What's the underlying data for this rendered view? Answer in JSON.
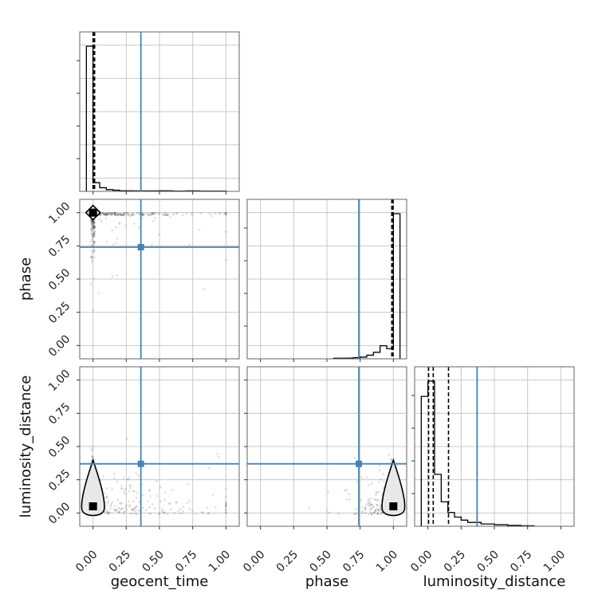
{
  "chart_data": {
    "type": "corner",
    "parameters": [
      "geocent_time",
      "phase",
      "luminosity_distance"
    ],
    "axis_range": [
      -0.1,
      1.1
    ],
    "tick_labels": [
      "0.00",
      "0.25",
      "0.50",
      "0.75",
      "1.00"
    ],
    "tick_values": [
      0.0,
      0.25,
      0.5,
      0.75,
      1.0
    ],
    "grid": true,
    "truth": {
      "geocent_time": 0.36,
      "phase": 0.74,
      "luminosity_distance": 0.37
    },
    "truth_color": "#4682b4",
    "histograms": [
      {
        "parameter": "geocent_time",
        "bin_edges": [
          -0.05,
          0.0,
          0.05,
          0.1,
          0.15,
          0.2,
          0.3,
          0.4,
          0.5,
          0.6,
          0.7,
          0.8,
          0.9,
          1.0
        ],
        "density": [
          1.0,
          0.06,
          0.025,
          0.012,
          0.008,
          0.004,
          0.003,
          0.003,
          0.004,
          0.002,
          0.003,
          0.002,
          0.002
        ],
        "quantile_lines": [
          0.0,
          0.005,
          0.012
        ]
      },
      {
        "parameter": "phase",
        "bin_edges": [
          0.55,
          0.6,
          0.65,
          0.7,
          0.75,
          0.8,
          0.85,
          0.9,
          0.95,
          1.0,
          1.05
        ],
        "density": [
          0.004,
          0.004,
          0.005,
          0.008,
          0.012,
          0.025,
          0.045,
          0.09,
          0.07,
          1.0
        ],
        "quantile_lines": [
          0.988,
          0.995,
          0.998
        ]
      },
      {
        "parameter": "luminosity_distance",
        "bin_edges": [
          -0.05,
          0.0,
          0.05,
          0.1,
          0.15,
          0.2,
          0.25,
          0.3,
          0.4,
          0.5,
          0.6,
          0.7,
          0.8
        ],
        "density": [
          0.85,
          0.95,
          0.34,
          0.16,
          0.09,
          0.06,
          0.04,
          0.025,
          0.015,
          0.01,
          0.006,
          0.003
        ],
        "quantile_lines": [
          0.005,
          0.04,
          0.155
        ]
      }
    ],
    "scatter_2d": [
      {
        "x_parameter": "geocent_time",
        "y_parameter": "phase",
        "mode": [
          0.0,
          1.0
        ]
      },
      {
        "x_parameter": "geocent_time",
        "y_parameter": "luminosity_distance",
        "mode": [
          0.0,
          0.05
        ]
      },
      {
        "x_parameter": "phase",
        "y_parameter": "luminosity_distance",
        "mode": [
          1.0,
          0.05
        ]
      }
    ]
  }
}
